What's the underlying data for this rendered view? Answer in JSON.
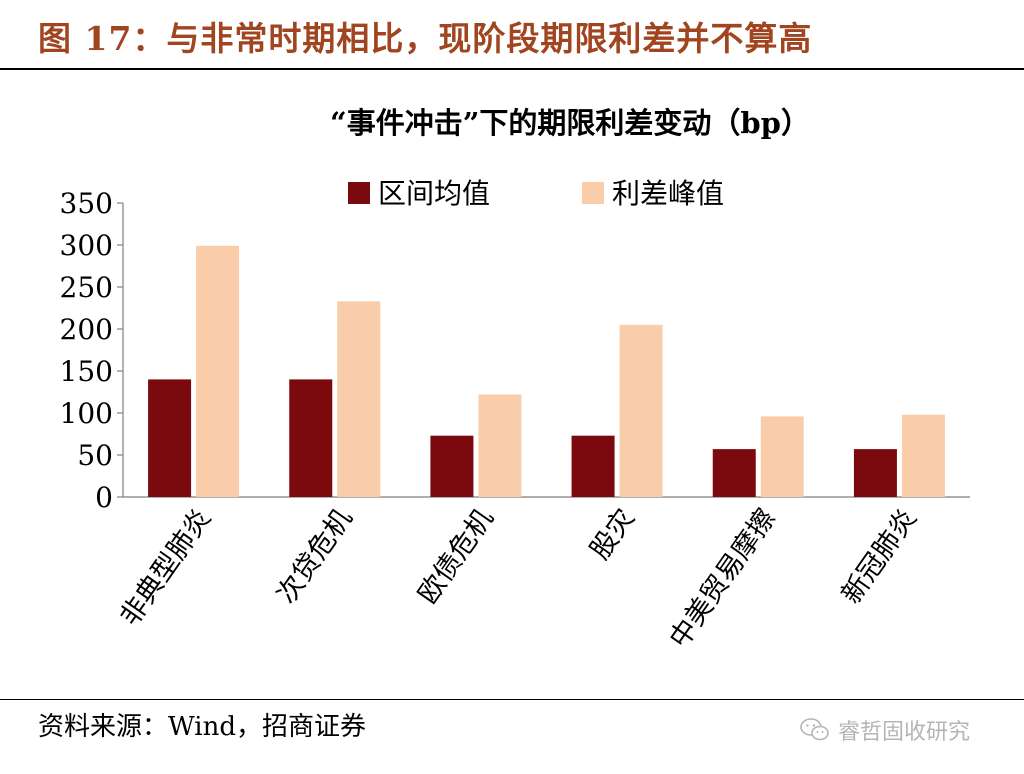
{
  "figure": {
    "title": "图 17：与非常时期相比，现阶段期限利差并不算高",
    "source": "资料来源：Wind，招商证券",
    "watermark": "睿哲固收研究",
    "watermark_icon": "wechat-icon"
  },
  "colors": {
    "title": "#a0451f",
    "series_mean": "#7a0a0e",
    "series_peak": "#f9cda9"
  },
  "chart_data": {
    "type": "bar",
    "title": "“事件冲击”下的期限利差变动（bp）",
    "xlabel": "",
    "ylabel": "",
    "ylim": [
      0,
      350
    ],
    "yticks": [
      0,
      50,
      100,
      150,
      200,
      250,
      300,
      350
    ],
    "grid": false,
    "legend_placement": "top",
    "categories": [
      "非典型肺炎",
      "次贷危机",
      "欧债危机",
      "股灾",
      "中美贸易摩擦",
      "新冠肺炎"
    ],
    "series": [
      {
        "name": "区间均值",
        "color": "#7a0a0e",
        "values": [
          140,
          140,
          73,
          73,
          57,
          57
        ]
      },
      {
        "name": "利差峰值",
        "color": "#f9cda9",
        "values": [
          299,
          233,
          122,
          205,
          96,
          98
        ]
      }
    ]
  }
}
